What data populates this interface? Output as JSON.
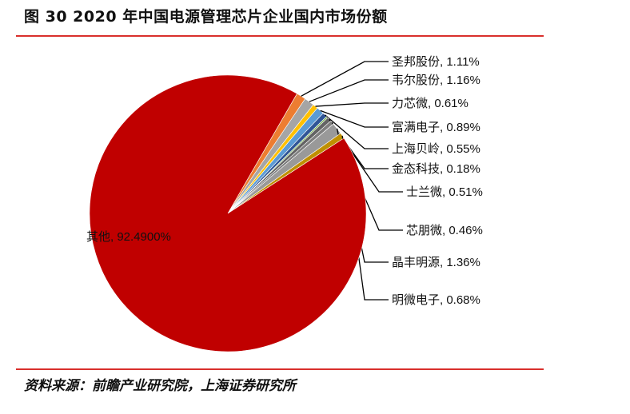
{
  "title": "图 30 2020 年中国电源管理芯片企业国内市场份额",
  "source": "资料来源：前瞻产业研究院，上海证券研究所",
  "chart_data": {
    "type": "pie",
    "title": "图 30 2020 年中国电源管理芯片企业国内市场份额",
    "slices": [
      {
        "name": "圣邦股份",
        "value": 1.11,
        "label": "圣邦股份, 1.11%",
        "color": "#ed7d31"
      },
      {
        "name": "韦尔股份",
        "value": 1.16,
        "label": "韦尔股份, 1.16%",
        "color": "#a5a5a5"
      },
      {
        "name": "力芯微",
        "value": 0.61,
        "label": "力芯微, 0.61%",
        "color": "#ffc000"
      },
      {
        "name": "富满电子",
        "value": 0.89,
        "label": "富满电子, 0.89%",
        "color": "#5b9bd5"
      },
      {
        "name": "上海贝岭",
        "value": 0.55,
        "label": "上海贝岭, 0.55%",
        "color": "#2f5597"
      },
      {
        "name": "金态科技",
        "value": 0.18,
        "label": "金态科技, 0.18%",
        "color": "#70ad47"
      },
      {
        "name": "士兰微",
        "value": 0.51,
        "label": "士兰微, 0.51%",
        "color": "#636363"
      },
      {
        "name": "芯朋微",
        "value": 0.46,
        "label": "芯朋微, 0.46%",
        "color": "#7f7f7f"
      },
      {
        "name": "晶丰明源",
        "value": 1.36,
        "label": "晶丰明源, 1.36%",
        "color": "#999999"
      },
      {
        "name": "明微电子",
        "value": 0.68,
        "label": "明微电子, 0.68%",
        "color": "#bf9000"
      },
      {
        "name": "其他",
        "value": 92.49,
        "label": "其他, 92.4900%",
        "color": "#c00000"
      }
    ]
  }
}
